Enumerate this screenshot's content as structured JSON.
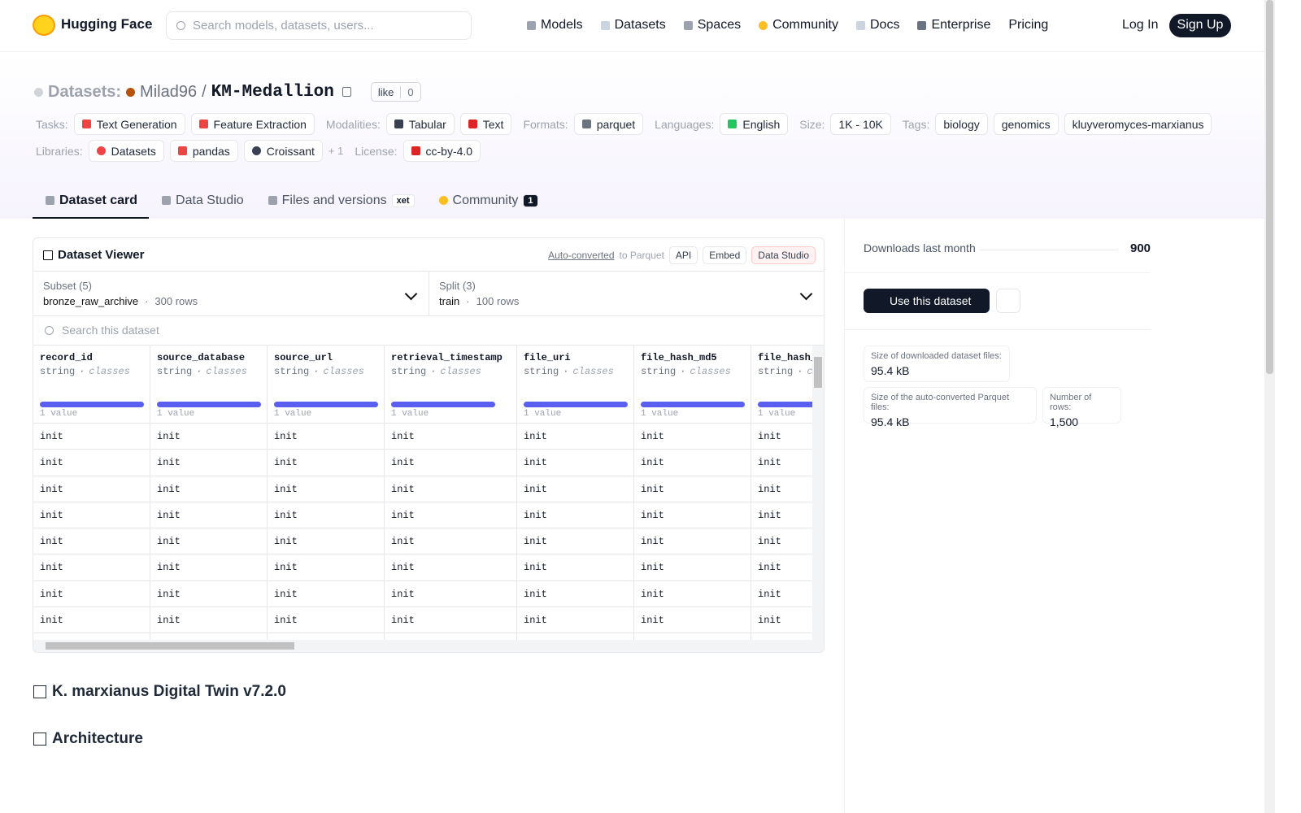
{
  "nav": {
    "brand": "Hugging Face",
    "search_placeholder": "Search models, datasets, users...",
    "links": [
      "Models",
      "Datasets",
      "Spaces",
      "Community",
      "Docs",
      "Enterprise",
      "Pricing"
    ],
    "login": "Log In",
    "signup": "Sign Up"
  },
  "header": {
    "section": "Datasets:",
    "owner": "Milad96",
    "slash": "/",
    "name": "KM-Medallion",
    "like": "like",
    "like_count": 0
  },
  "tag_rows": [
    [
      {
        "label": "Tasks:",
        "items": [
          "Text Generation",
          "Feature Extraction"
        ]
      },
      {
        "label": "Modalities:",
        "items": [
          "Tabular",
          "Text"
        ]
      },
      {
        "label": "Formats:",
        "items": [
          "parquet"
        ]
      },
      {
        "label": "Languages:",
        "items": [
          "English"
        ]
      },
      {
        "label": "Size:",
        "items": [
          "1K - 10K"
        ]
      },
      {
        "label": "Tags:",
        "items": [
          "biology",
          "genomics",
          "kluyveromyces-marxianus"
        ]
      }
    ],
    [
      {
        "label": "Libraries:",
        "items": [
          "Datasets",
          "pandas",
          "Croissant"
        ],
        "more": "+ 1"
      },
      {
        "label": "License:",
        "items": [
          "cc-by-4.0"
        ]
      }
    ]
  ],
  "tabs": [
    {
      "label": "Dataset card"
    },
    {
      "label": "Data Studio"
    },
    {
      "label": "Files and versions",
      "badge": "xet"
    },
    {
      "label": "Community",
      "badge": 1
    }
  ],
  "viewer": {
    "title": "Dataset Viewer",
    "converted_link": "Auto-converted",
    "converted_text": "to Parquet",
    "buttons": [
      "API",
      "Embed",
      "Data Studio"
    ],
    "separator": "·",
    "subset": {
      "label": "Subset (5)",
      "value": "bronze_raw_archive",
      "rows": "300 rows"
    },
    "split": {
      "label": "Split (3)",
      "value": "train",
      "rows": "100 rows"
    },
    "search_placeholder": "Search this dataset",
    "columns": [
      {
        "name": "record_id",
        "type": "string",
        "kind": "classes",
        "stat": "1 value"
      },
      {
        "name": "source_database",
        "type": "string",
        "kind": "classes",
        "stat": "1 value"
      },
      {
        "name": "source_url",
        "type": "string",
        "kind": "classes",
        "stat": "1 value"
      },
      {
        "name": "retrieval_timestamp",
        "type": "string",
        "kind": "classes",
        "stat": "1 value"
      },
      {
        "name": "file_uri",
        "type": "string",
        "kind": "classes",
        "stat": "1 value"
      },
      {
        "name": "file_hash_md5",
        "type": "string",
        "kind": "classes",
        "stat": "1 value"
      },
      {
        "name": "file_hash_",
        "type": "string",
        "kind": "classes",
        "stat": "1 value"
      }
    ],
    "rows": [
      [
        "init",
        "init",
        "init",
        "init",
        "init",
        "init",
        "init"
      ],
      [
        "init",
        "init",
        "init",
        "init",
        "init",
        "init",
        "init"
      ],
      [
        "init",
        "init",
        "init",
        "init",
        "init",
        "init",
        "init"
      ],
      [
        "init",
        "init",
        "init",
        "init",
        "init",
        "init",
        "init"
      ],
      [
        "init",
        "init",
        "init",
        "init",
        "init",
        "init",
        "init"
      ],
      [
        "init",
        "init",
        "init",
        "init",
        "init",
        "init",
        "init"
      ],
      [
        "init",
        "init",
        "init",
        "init",
        "init",
        "init",
        "init"
      ],
      [
        "init",
        "init",
        "init",
        "init",
        "init",
        "init",
        "init"
      ]
    ]
  },
  "card": {
    "headings": [
      "K. marxianus Digital Twin v7.2.0",
      "Architecture"
    ]
  },
  "sidebar": {
    "downloads_label": "Downloads last month",
    "downloads": 900,
    "use_button": "Use this dataset",
    "stats": [
      {
        "label": "Size of downloaded dataset files:",
        "value": "95.4 kB"
      },
      {
        "label": "Size of the auto-converted Parquet files:",
        "value": "95.4 kB"
      },
      {
        "label": "Number of rows:",
        "value": "1,500"
      }
    ]
  }
}
